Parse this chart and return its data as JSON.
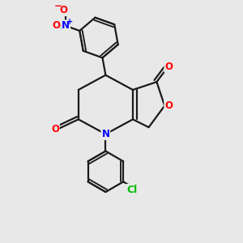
{
  "background_color": "#e8e8e8",
  "bond_color": "#1a1a1a",
  "bond_width": 1.6,
  "N_color": "#0000ff",
  "O_color": "#ff0000",
  "Cl_color": "#00bb00",
  "font_size_atom": 8.5,
  "fig_size": [
    3.0,
    3.0
  ],
  "dpi": 100,
  "xlim": [
    0,
    10
  ],
  "ylim": [
    0,
    10
  ]
}
